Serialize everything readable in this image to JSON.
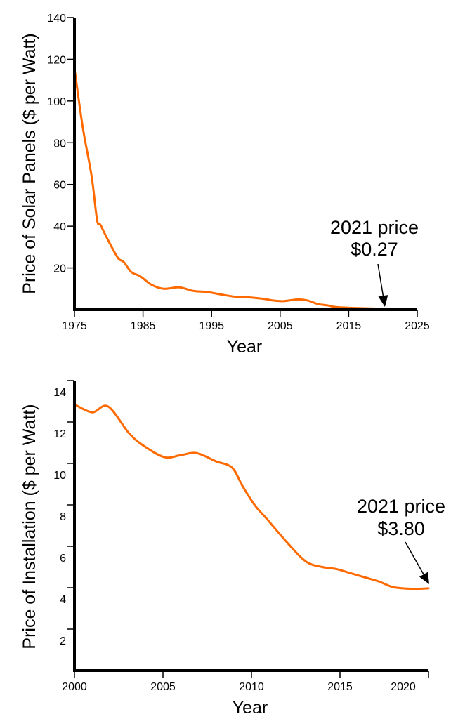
{
  "accent_color": "#ff6a00",
  "chart_data": [
    {
      "type": "line",
      "title": "",
      "xlabel": "Year",
      "ylabel": "Price of Solar Panels ($ per Watt)",
      "xlim": [
        1975,
        2025
      ],
      "ylim": [
        0,
        140
      ],
      "xticks": [
        1975,
        1985,
        1995,
        2005,
        2015,
        2025
      ],
      "xtick_labels": [
        "1975",
        "1985",
        "1995",
        "2005",
        "2015",
        "2025"
      ],
      "yticks": [
        20,
        40,
        60,
        80,
        100,
        120,
        140
      ],
      "ytick_labels": [
        "20",
        "40",
        "60",
        "80",
        "100",
        "120",
        "140"
      ],
      "grid": false,
      "series": [
        {
          "name": "Price of Solar Panels",
          "color": "#ff6a00",
          "x": [
            1975.1,
            1976.2,
            1977.5,
            1978.3,
            1978.8,
            1979.7,
            1981.3,
            1982.2,
            1983.3,
            1984.6,
            1986.2,
            1988.0,
            1990.3,
            1992.3,
            1994.4,
            1996.5,
            1998.5,
            2000.5,
            2002.5,
            2004.0,
            2005.5,
            2007.5,
            2009.0,
            2010.5,
            2012.0,
            2013.0,
            2015.0,
            2019.0,
            2022.0
          ],
          "y": [
            113.4,
            87.6,
            64.0,
            43.0,
            40.6,
            34.6,
            25.0,
            22.8,
            18.0,
            16.0,
            12.0,
            10.0,
            10.7,
            9.0,
            8.4,
            7.2,
            6.2,
            5.9,
            5.2,
            4.4,
            4.1,
            4.9,
            4.4,
            2.7,
            2.0,
            1.3,
            0.9,
            0.5,
            0.27
          ]
        }
      ],
      "annotations": [
        {
          "line1": "2021 price",
          "line2": "$0.27",
          "points_to_year": 2019.5,
          "points_to_value": 0.27
        }
      ]
    },
    {
      "type": "line",
      "title": "",
      "xlabel": "Year",
      "ylabel": "Price of Installation ($ per Watt)",
      "xlim": [
        2000,
        2020
      ],
      "ylim": [
        0,
        14.5
      ],
      "xticks": [
        2000,
        2005,
        2010,
        2015,
        2020
      ],
      "xtick_labels": [
        "2000",
        "2005",
        "2010",
        "2015",
        "2020"
      ],
      "yticks": [
        2,
        4,
        6,
        8,
        10,
        12,
        14
      ],
      "ytick_labels": [
        "2",
        "4",
        "6",
        "8",
        "10",
        "12",
        "14"
      ],
      "grid": false,
      "series": [
        {
          "name": "Price of Installation",
          "color": "#ff6a00",
          "x": [
            2000.0,
            2001.0,
            2001.9,
            2003.1,
            2004.0,
            2005.1,
            2006.0,
            2006.9,
            2008.0,
            2008.9,
            2009.5,
            2010.2,
            2010.9,
            2012.1,
            2013.1,
            2014.0,
            2014.8,
            2015.6,
            2016.4,
            2017.2,
            2018.0,
            2019.0,
            2020.0
          ],
          "y": [
            12.85,
            12.47,
            12.75,
            11.44,
            10.8,
            10.3,
            10.4,
            10.5,
            10.1,
            9.8,
            8.9,
            7.97,
            7.29,
            6.1,
            5.25,
            5.0,
            4.9,
            4.7,
            4.5,
            4.3,
            4.03,
            3.95,
            3.97
          ]
        }
      ],
      "annotations": [
        {
          "line1": "2021 price",
          "line2": "$3.80",
          "points_to_year": 2020.0,
          "points_to_value": 4.1
        }
      ]
    }
  ]
}
